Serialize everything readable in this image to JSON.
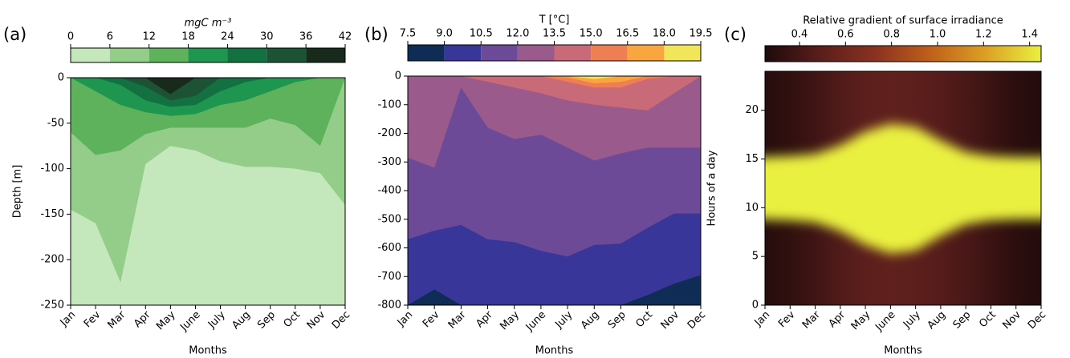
{
  "chart_data": [
    {
      "type": "contour",
      "panel_label": "(a)",
      "colorbar_label": "mgC m⁻³",
      "xlabel": "Months",
      "ylabel": "Depth [m]",
      "categories": [
        "Jan",
        "Fev",
        "Mar",
        "Apr",
        "May",
        "June",
        "July",
        "Aug",
        "Sep",
        "Oct",
        "Nov",
        "Dec"
      ],
      "ylim": [
        -250,
        0
      ],
      "yticks": [
        0,
        -50,
        -100,
        -150,
        -200,
        -250
      ],
      "levels": [
        0,
        6,
        12,
        18,
        24,
        30,
        36,
        42
      ],
      "colors": [
        "#c4e8bc",
        "#93cd89",
        "#5eb25c",
        "#1e9650",
        "#137041",
        "#1e5234",
        "#172a1b"
      ],
      "isolines": [
        [
          -145,
          -160,
          -225,
          -95,
          -75,
          -80,
          -92,
          -98,
          -98,
          -100,
          -105,
          -140
        ],
        [
          -60,
          -85,
          -80,
          -62,
          -55,
          -55,
          -55,
          -55,
          -45,
          -52,
          -75,
          0
        ],
        [
          0,
          -15,
          -30,
          -38,
          -42,
          -40,
          -30,
          -25,
          -15,
          -5,
          0,
          0
        ],
        [
          0,
          0,
          -8,
          -25,
          -32,
          -30,
          -15,
          -5,
          0,
          0,
          0,
          0
        ],
        [
          0,
          0,
          0,
          -10,
          -25,
          -20,
          0,
          0,
          0,
          0,
          0,
          0
        ],
        [
          0,
          0,
          0,
          0,
          -18,
          0,
          0,
          0,
          0,
          0,
          0,
          0
        ]
      ]
    },
    {
      "type": "contour",
      "panel_label": "(b)",
      "colorbar_label": "T [°C]",
      "xlabel": "Months",
      "categories": [
        "Jan",
        "Fev",
        "Mar",
        "Apr",
        "May",
        "June",
        "July",
        "Aug",
        "Sep",
        "Oct",
        "Nov",
        "Dec"
      ],
      "ylim": [
        -800,
        0
      ],
      "yticks": [
        0,
        -100,
        -200,
        -300,
        -400,
        -500,
        -600,
        -700,
        -800
      ],
      "levels": [
        7.5,
        {
          "value": 9,
          "label": "9.0"
        },
        10.5,
        {
          "value": 12,
          "label": "12.0"
        },
        13.5,
        {
          "value": 15,
          "label": "15.0"
        },
        16.5,
        {
          "value": 18,
          "label": "18.0"
        },
        19.5
      ],
      "colors": [
        "#0e2c56",
        "#39369a",
        "#6c4a98",
        "#9a5a8c",
        "#c96a78",
        "#ee7f53",
        "#f9a641",
        "#f1e65a"
      ],
      "isolines": [
        [
          -800,
          -745,
          -800,
          -800,
          -800,
          -800,
          -800,
          -800,
          -800,
          -765,
          -725,
          -695
        ],
        [
          -570,
          -540,
          -520,
          -570,
          -580,
          -610,
          -630,
          -590,
          -585,
          -530,
          -480,
          -480
        ],
        [
          -285,
          -320,
          -40,
          -180,
          -220,
          -205,
          -250,
          -295,
          -270,
          -250,
          -250,
          -250
        ],
        [
          0,
          0,
          0,
          -20,
          -40,
          -60,
          -85,
          -100,
          -110,
          -120,
          -60,
          0
        ],
        [
          0,
          0,
          0,
          0,
          0,
          0,
          -20,
          -40,
          -40,
          -10,
          0,
          0
        ],
        [
          0,
          0,
          0,
          0,
          0,
          0,
          -5,
          -25,
          -20,
          0,
          0,
          0
        ],
        [
          0,
          0,
          0,
          0,
          0,
          0,
          0,
          -10,
          0,
          0,
          0,
          0
        ]
      ]
    },
    {
      "type": "heatmap",
      "panel_label": "(c)",
      "colorbar_label": "Relative gradient of surface irradiance",
      "xlabel": "Months",
      "ylabel": "Hours of a day",
      "categories": [
        "Jan",
        "Fev",
        "Mar",
        "Apr",
        "May",
        "June",
        "July",
        "Aug",
        "Sep",
        "Oct",
        "Nov",
        "Dec"
      ],
      "ylim": [
        0,
        24
      ],
      "yticks": [
        0,
        5,
        10,
        15,
        20
      ],
      "clim": [
        0.25,
        1.45
      ],
      "cticks": [
        0.4,
        0.6,
        0.8,
        {
          "value": 1,
          "label": "1.0"
        },
        1.2,
        1.4
      ],
      "colormap": [
        "#1e0a0a",
        "#5a1e1c",
        "#8a3220",
        "#c0601a",
        "#dca024",
        "#eaf040"
      ],
      "values": [
        0.28,
        0.32,
        0.38,
        0.45,
        0.5,
        0.52,
        0.5,
        0.47,
        0.42,
        0.36,
        0.3,
        0.27
      ],
      "band_value": 1.45,
      "band_low": [
        8.8,
        8.7,
        8.5,
        7.6,
        6.2,
        5.3,
        5.6,
        7.1,
        8.3,
        8.7,
        8.8,
        8.8
      ],
      "band_high": [
        15.2,
        15.3,
        15.5,
        16.4,
        17.8,
        18.6,
        18.3,
        16.9,
        15.7,
        15.3,
        15.2,
        15.2
      ]
    }
  ]
}
